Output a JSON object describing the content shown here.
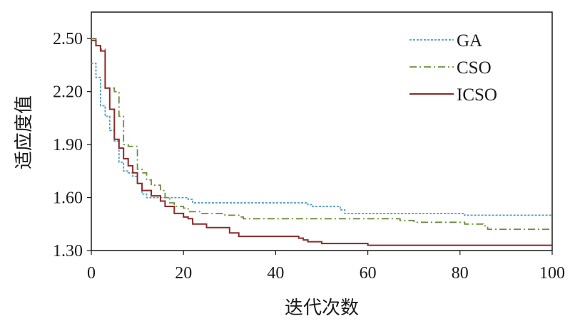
{
  "chart_data": {
    "type": "line",
    "xlabel": "迭代次数",
    "ylabel": "适应度值",
    "xlim": [
      0,
      100
    ],
    "ylim": [
      1.3,
      2.65
    ],
    "x_ticks": [
      0,
      20,
      40,
      60,
      80,
      100
    ],
    "y_ticks": [
      "1.30",
      "1.60",
      "1.90",
      "2.20",
      "2.50"
    ],
    "grid": false,
    "legend_position": "top-right",
    "series": [
      {
        "name": "GA",
        "color": "#4a9fc8",
        "dash": "dotted",
        "points": [
          [
            0,
            2.36
          ],
          [
            1,
            2.36
          ],
          [
            1,
            2.28
          ],
          [
            2,
            2.28
          ],
          [
            2,
            2.12
          ],
          [
            3,
            2.12
          ],
          [
            3,
            2.06
          ],
          [
            4,
            2.06
          ],
          [
            4,
            1.98
          ],
          [
            5,
            1.98
          ],
          [
            5,
            1.92
          ],
          [
            6,
            1.92
          ],
          [
            6,
            1.8
          ],
          [
            7,
            1.8
          ],
          [
            7,
            1.75
          ],
          [
            8,
            1.75
          ],
          [
            8,
            1.74
          ],
          [
            9,
            1.74
          ],
          [
            9,
            1.72
          ],
          [
            10,
            1.72
          ],
          [
            10,
            1.68
          ],
          [
            11,
            1.68
          ],
          [
            11,
            1.62
          ],
          [
            12,
            1.62
          ],
          [
            12,
            1.6
          ],
          [
            21,
            1.6
          ],
          [
            21,
            1.59
          ],
          [
            22,
            1.59
          ],
          [
            22,
            1.57
          ],
          [
            47,
            1.57
          ],
          [
            47,
            1.56
          ],
          [
            48,
            1.56
          ],
          [
            48,
            1.55
          ],
          [
            54,
            1.55
          ],
          [
            54,
            1.53
          ],
          [
            55,
            1.53
          ],
          [
            55,
            1.51
          ],
          [
            81,
            1.51
          ],
          [
            81,
            1.5
          ],
          [
            82,
            1.5
          ],
          [
            82,
            1.5
          ],
          [
            100,
            1.5
          ]
        ]
      },
      {
        "name": "CSO",
        "color": "#6b8e3e",
        "dash": "dashdot",
        "points": [
          [
            0,
            2.5
          ],
          [
            1,
            2.5
          ],
          [
            1,
            2.46
          ],
          [
            2,
            2.46
          ],
          [
            2,
            2.44
          ],
          [
            3,
            2.44
          ],
          [
            3,
            2.22
          ],
          [
            5,
            2.22
          ],
          [
            5,
            2.2
          ],
          [
            6,
            2.2
          ],
          [
            6,
            2.06
          ],
          [
            7,
            2.06
          ],
          [
            7,
            1.9
          ],
          [
            8,
            1.9
          ],
          [
            8,
            1.89
          ],
          [
            10,
            1.89
          ],
          [
            10,
            1.76
          ],
          [
            11,
            1.76
          ],
          [
            11,
            1.74
          ],
          [
            12,
            1.74
          ],
          [
            12,
            1.7
          ],
          [
            13,
            1.7
          ],
          [
            13,
            1.67
          ],
          [
            15,
            1.67
          ],
          [
            15,
            1.64
          ],
          [
            16,
            1.64
          ],
          [
            16,
            1.6
          ],
          [
            17,
            1.6
          ],
          [
            17,
            1.57
          ],
          [
            18,
            1.57
          ],
          [
            18,
            1.55
          ],
          [
            20,
            1.55
          ],
          [
            20,
            1.54
          ],
          [
            21,
            1.54
          ],
          [
            21,
            1.52
          ],
          [
            24,
            1.52
          ],
          [
            24,
            1.51
          ],
          [
            29,
            1.51
          ],
          [
            29,
            1.5
          ],
          [
            32,
            1.5
          ],
          [
            32,
            1.49
          ],
          [
            33,
            1.49
          ],
          [
            33,
            1.48
          ],
          [
            67,
            1.48
          ],
          [
            67,
            1.47
          ],
          [
            70,
            1.47
          ],
          [
            70,
            1.46
          ],
          [
            81,
            1.46
          ],
          [
            81,
            1.45
          ],
          [
            85,
            1.45
          ],
          [
            85,
            1.44
          ],
          [
            86,
            1.44
          ],
          [
            86,
            1.42
          ],
          [
            100,
            1.42
          ]
        ]
      },
      {
        "name": "ICSO",
        "color": "#8b2a2a",
        "dash": "solid",
        "points": [
          [
            0,
            2.49
          ],
          [
            1,
            2.49
          ],
          [
            1,
            2.46
          ],
          [
            2,
            2.46
          ],
          [
            2,
            2.43
          ],
          [
            3,
            2.43
          ],
          [
            3,
            2.22
          ],
          [
            4,
            2.22
          ],
          [
            4,
            2.1
          ],
          [
            5,
            2.1
          ],
          [
            5,
            1.93
          ],
          [
            6,
            1.93
          ],
          [
            6,
            1.88
          ],
          [
            7,
            1.88
          ],
          [
            7,
            1.82
          ],
          [
            8,
            1.82
          ],
          [
            8,
            1.78
          ],
          [
            9,
            1.78
          ],
          [
            9,
            1.74
          ],
          [
            10,
            1.74
          ],
          [
            10,
            1.68
          ],
          [
            11,
            1.68
          ],
          [
            11,
            1.64
          ],
          [
            13,
            1.64
          ],
          [
            13,
            1.61
          ],
          [
            15,
            1.61
          ],
          [
            15,
            1.58
          ],
          [
            16,
            1.58
          ],
          [
            16,
            1.55
          ],
          [
            18,
            1.55
          ],
          [
            18,
            1.51
          ],
          [
            20,
            1.51
          ],
          [
            20,
            1.49
          ],
          [
            21,
            1.49
          ],
          [
            21,
            1.48
          ],
          [
            22,
            1.48
          ],
          [
            22,
            1.45
          ],
          [
            25,
            1.45
          ],
          [
            25,
            1.43
          ],
          [
            30,
            1.43
          ],
          [
            30,
            1.4
          ],
          [
            32,
            1.4
          ],
          [
            32,
            1.38
          ],
          [
            45,
            1.38
          ],
          [
            45,
            1.37
          ],
          [
            46,
            1.37
          ],
          [
            46,
            1.36
          ],
          [
            47,
            1.36
          ],
          [
            47,
            1.35
          ],
          [
            50,
            1.35
          ],
          [
            50,
            1.34
          ],
          [
            60,
            1.34
          ],
          [
            60,
            1.33
          ],
          [
            100,
            1.33
          ]
        ]
      }
    ]
  }
}
